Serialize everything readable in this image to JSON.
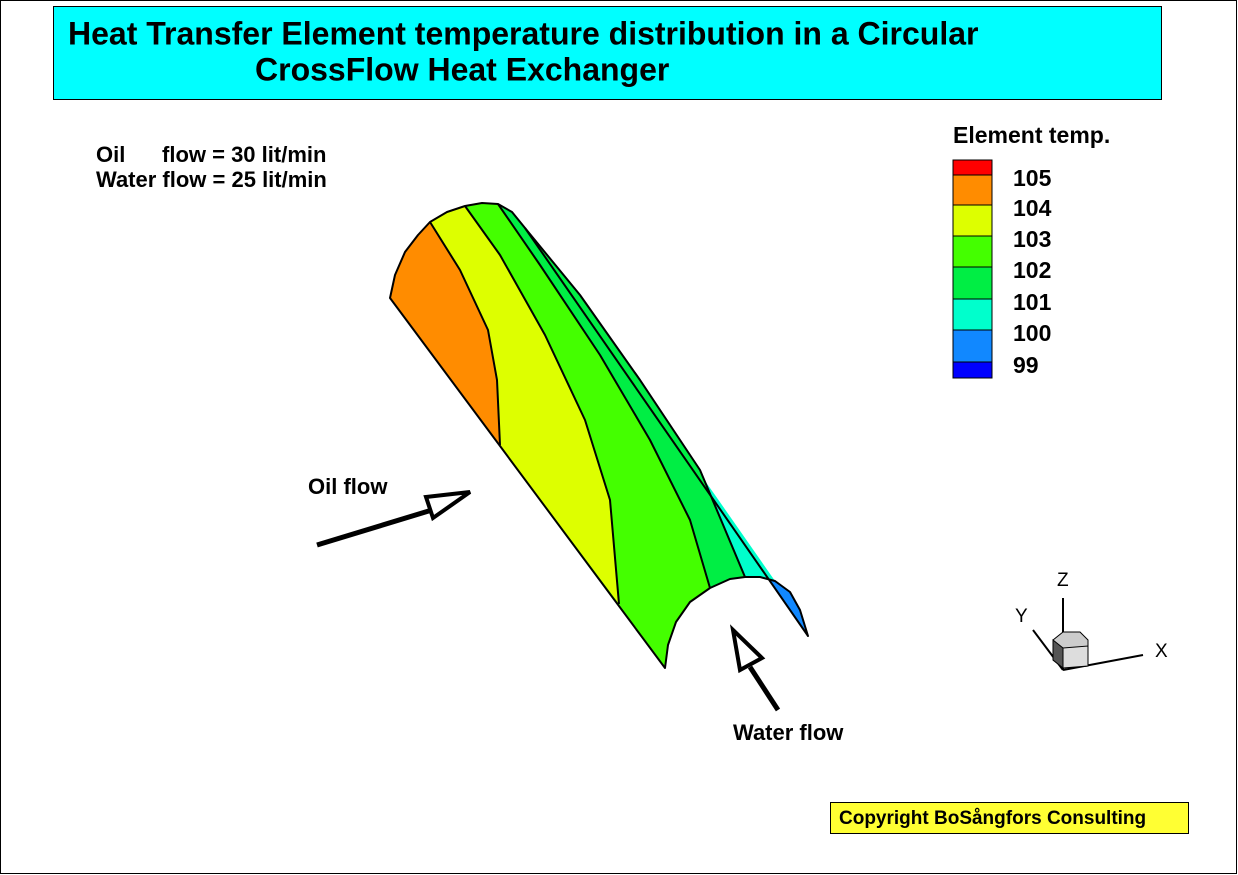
{
  "header": {
    "title_lines": [
      "Heat Transfer Element temperature distribution in a Circular",
      "CrossFlow Heat Exchanger"
    ]
  },
  "conditions": [
    "Oil      flow = 30 lit/min",
    "Water flow = 25 lit/min"
  ],
  "legend": {
    "title": "Element temp.",
    "labels": [
      "105",
      "104",
      "103",
      "102",
      "101",
      "100",
      "99"
    ],
    "colors": [
      "#ff0000",
      "#ff8c00",
      "#ddff00",
      "#44ff00",
      "#00ee44",
      "#00ffcc",
      "#1188ff",
      "#0000ff"
    ]
  },
  "annotations": {
    "oil": "Oil flow",
    "water": "Water flow"
  },
  "axes": [
    "X",
    "Y",
    "Z"
  ],
  "copyright": "Copyright BoSångfors Consulting"
}
